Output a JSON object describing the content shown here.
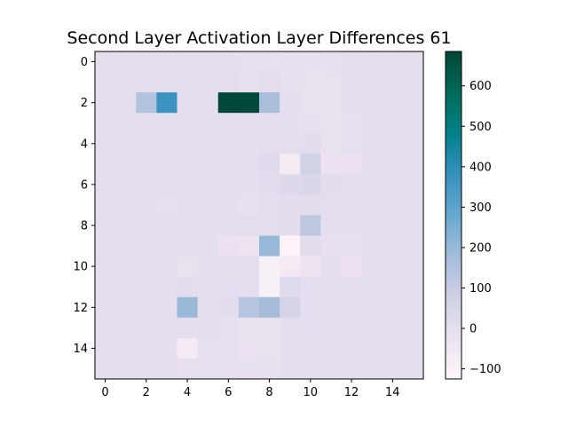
{
  "chart_data": {
    "type": "heatmap",
    "title": "Second Layer Activation Layer Differences 61",
    "xlabel": "",
    "ylabel": "",
    "x_ticks": [
      0,
      2,
      4,
      6,
      8,
      10,
      12,
      14
    ],
    "y_ticks": [
      0,
      2,
      4,
      6,
      8,
      10,
      12,
      14
    ],
    "x_range": [
      -0.5,
      15.5
    ],
    "y_range": [
      -0.5,
      15.5
    ],
    "colormap": "PuBuGn",
    "colorbar": {
      "ticks": [
        -100,
        0,
        100,
        200,
        300,
        400,
        500,
        600
      ],
      "min": -125,
      "max": 685
    },
    "grid": false,
    "values": [
      [
        0,
        0,
        0,
        0,
        0,
        0,
        0,
        -5,
        -5,
        -10,
        -10,
        -5,
        0,
        0,
        0,
        0
      ],
      [
        0,
        0,
        0,
        5,
        0,
        0,
        5,
        -5,
        5,
        -10,
        -15,
        -15,
        0,
        0,
        0,
        0
      ],
      [
        0,
        0,
        150,
        370,
        0,
        0,
        680,
        675,
        175,
        0,
        -15,
        -15,
        0,
        0,
        0,
        0
      ],
      [
        0,
        0,
        0,
        0,
        0,
        0,
        0,
        0,
        5,
        0,
        -10,
        -15,
        -10,
        0,
        0,
        0
      ],
      [
        0,
        0,
        0,
        0,
        0,
        0,
        0,
        0,
        5,
        0,
        10,
        -15,
        -5,
        0,
        0,
        0
      ],
      [
        0,
        0,
        0,
        0,
        0,
        0,
        0,
        0,
        20,
        -60,
        70,
        -20,
        -20,
        0,
        0,
        0
      ],
      [
        0,
        0,
        0,
        0,
        0,
        0,
        0,
        0,
        10,
        30,
        40,
        10,
        0,
        0,
        0,
        0
      ],
      [
        0,
        0,
        0,
        -5,
        0,
        0,
        0,
        -10,
        5,
        10,
        10,
        5,
        0,
        0,
        0,
        0
      ],
      [
        0,
        0,
        0,
        0,
        0,
        0,
        0,
        5,
        5,
        10,
        120,
        0,
        0,
        0,
        0,
        0
      ],
      [
        0,
        0,
        0,
        0,
        0,
        0,
        -20,
        -30,
        200,
        -110,
        10,
        -10,
        -5,
        0,
        0,
        0
      ],
      [
        0,
        0,
        0,
        0,
        -15,
        0,
        0,
        5,
        -90,
        -60,
        -30,
        0,
        -20,
        0,
        0,
        0
      ],
      [
        0,
        0,
        0,
        0,
        10,
        0,
        0,
        0,
        -90,
        20,
        0,
        0,
        0,
        0,
        0,
        0
      ],
      [
        0,
        0,
        0,
        0,
        200,
        0,
        10,
        140,
        180,
        60,
        0,
        0,
        0,
        0,
        0,
        0
      ],
      [
        0,
        0,
        0,
        0,
        0,
        0,
        -5,
        -15,
        -15,
        0,
        0,
        0,
        0,
        0,
        0,
        0
      ],
      [
        0,
        0,
        0,
        0,
        -60,
        -5,
        -5,
        -20,
        -15,
        0,
        0,
        0,
        0,
        0,
        0,
        0
      ],
      [
        0,
        0,
        0,
        0,
        -5,
        -5,
        -5,
        -10,
        -10,
        0,
        0,
        0,
        0,
        0,
        0,
        0
      ]
    ]
  }
}
